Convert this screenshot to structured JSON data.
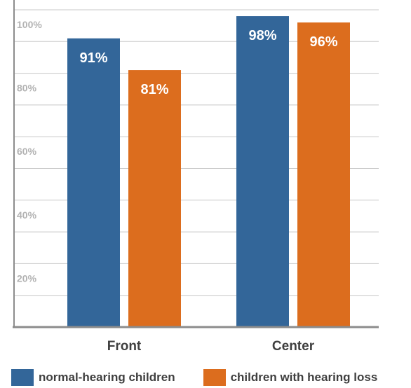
{
  "chart_data": {
    "type": "bar",
    "categories": [
      "Front",
      "Center"
    ],
    "series": [
      {
        "name": "normal-hearing children",
        "values": [
          91,
          98
        ],
        "labels": [
          "91%",
          "98%"
        ],
        "color": "#336699"
      },
      {
        "name": "children with hearing loss",
        "values": [
          81,
          96
        ],
        "labels": [
          "81%",
          "96%"
        ],
        "color": "#dc6d1e"
      }
    ],
    "ylim": [
      0,
      100
    ],
    "yticks": [
      20,
      40,
      60,
      80,
      100
    ],
    "ytick_labels": [
      "20%",
      "40%",
      "60%",
      "80%",
      "100%"
    ],
    "grid": true,
    "legend_position": "bottom",
    "title": "",
    "xlabel": "",
    "ylabel": ""
  }
}
